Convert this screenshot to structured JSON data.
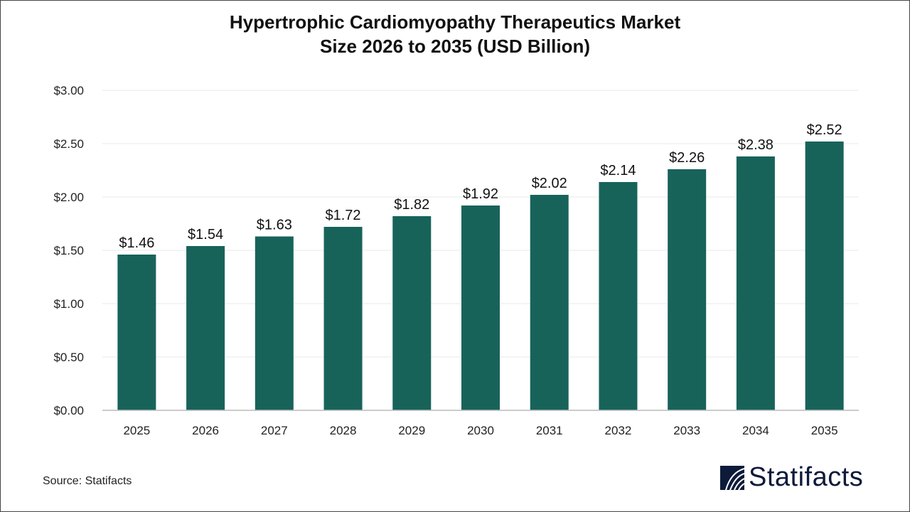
{
  "chart_data": {
    "type": "bar",
    "title_line1": "Hypertrophic Cardiomyopathy Therapeutics Market",
    "title_line2": "Size 2026 to 2035 (USD Billion)",
    "categories": [
      "2025",
      "2026",
      "2027",
      "2028",
      "2029",
      "2030",
      "2031",
      "2032",
      "2033",
      "2034",
      "2035"
    ],
    "values": [
      1.46,
      1.54,
      1.63,
      1.72,
      1.82,
      1.92,
      2.02,
      2.14,
      2.26,
      2.38,
      2.52
    ],
    "data_labels": [
      "$1.46",
      "$1.54",
      "$1.63",
      "$1.72",
      "$1.82",
      "$1.92",
      "$2.02",
      "$2.14",
      "$2.26",
      "$2.38",
      "$2.52"
    ],
    "yticks": [
      0,
      0.5,
      1,
      1.5,
      2,
      2.5,
      3
    ],
    "ytick_labels": [
      "$0.00",
      "$0.50",
      "$1.00",
      "$1.50",
      "$2.00",
      "$2.50",
      "$3.00"
    ],
    "ylim": [
      0,
      3
    ],
    "grid": true,
    "bar_color": "#17635a"
  },
  "source": "Source: Statifacts",
  "logo": {
    "text": "Statifacts",
    "color": "#0e1a3a"
  }
}
